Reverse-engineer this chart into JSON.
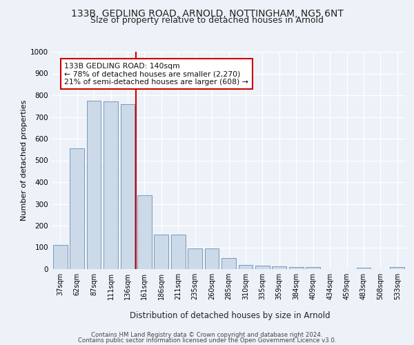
{
  "title1": "133B, GEDLING ROAD, ARNOLD, NOTTINGHAM, NG5 6NT",
  "title2": "Size of property relative to detached houses in Arnold",
  "xlabel": "Distribution of detached houses by size in Arnold",
  "ylabel": "Number of detached properties",
  "categories": [
    "37sqm",
    "62sqm",
    "87sqm",
    "111sqm",
    "136sqm",
    "161sqm",
    "186sqm",
    "211sqm",
    "235sqm",
    "260sqm",
    "285sqm",
    "310sqm",
    "335sqm",
    "359sqm",
    "384sqm",
    "409sqm",
    "434sqm",
    "459sqm",
    "483sqm",
    "508sqm",
    "533sqm"
  ],
  "values": [
    110,
    555,
    775,
    770,
    760,
    340,
    158,
    158,
    95,
    95,
    50,
    20,
    15,
    12,
    10,
    10,
    0,
    0,
    7,
    0,
    10
  ],
  "bar_color": "#ccd9e8",
  "bar_edge_color": "#7799bb",
  "vline_color": "#cc0000",
  "vline_pos": 4.5,
  "annotation_text": "133B GEDLING ROAD: 140sqm\n← 78% of detached houses are smaller (2,270)\n21% of semi-detached houses are larger (608) →",
  "annotation_box_facecolor": "#ffffff",
  "annotation_box_edgecolor": "#cc0000",
  "ylim": [
    0,
    1000
  ],
  "yticks": [
    0,
    100,
    200,
    300,
    400,
    500,
    600,
    700,
    800,
    900,
    1000
  ],
  "footer1": "Contains HM Land Registry data © Crown copyright and database right 2024.",
  "footer2": "Contains public sector information licensed under the Open Government Licence v3.0.",
  "bg_color": "#edf2f8",
  "grid_color": "#ffffff"
}
